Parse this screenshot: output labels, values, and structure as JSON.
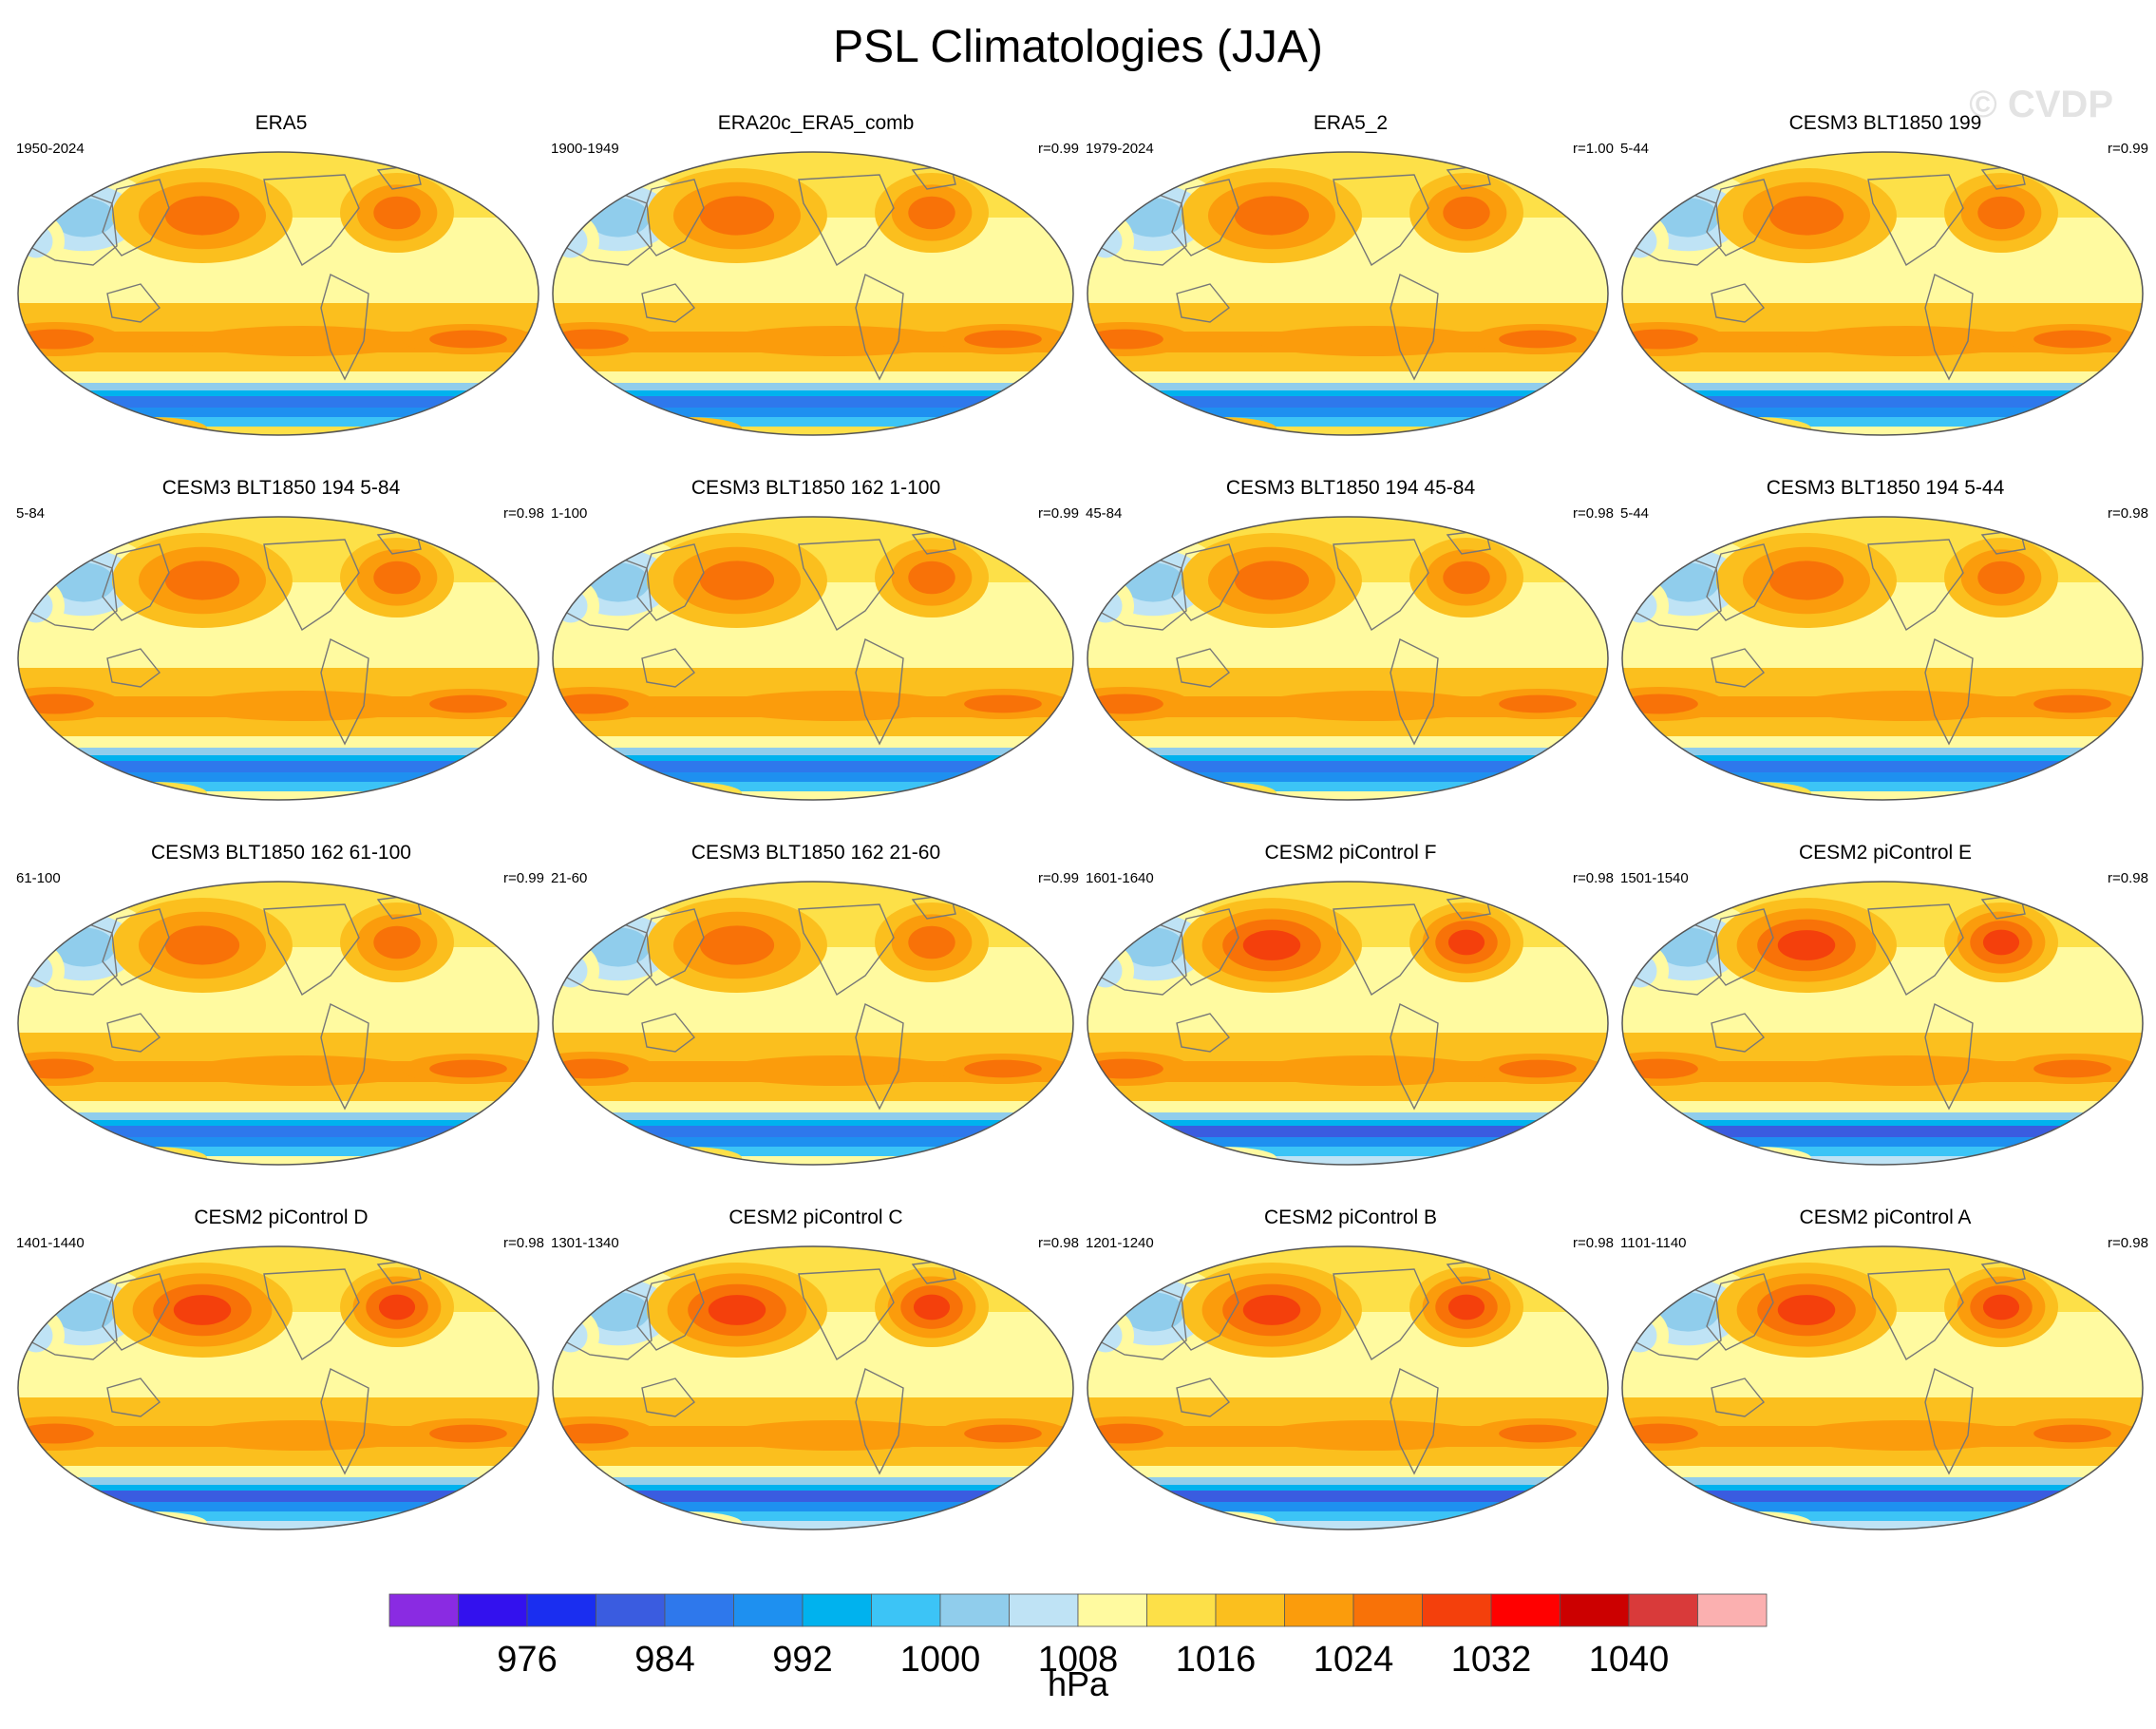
{
  "title": "PSL Climatologies (JJA)",
  "watermark": "© CVDP",
  "panels": [
    {
      "title": "ERA5",
      "years": "1950-2024",
      "corr": "",
      "style": "era"
    },
    {
      "title": "ERA20c_ERA5_comb",
      "years": "1900-1949",
      "corr": "r=0.99",
      "style": "era"
    },
    {
      "title": "ERA5_2",
      "years": "1979-2024",
      "corr": "r=1.00",
      "style": "era"
    },
    {
      "title": "CESM3 BLT1850 199",
      "years": "5-44",
      "corr": "r=0.99",
      "style": "cesm3"
    },
    {
      "title": "CESM3 BLT1850 194 5-84",
      "years": "5-84",
      "corr": "r=0.98",
      "style": "cesm3"
    },
    {
      "title": "CESM3 BLT1850 162 1-100",
      "years": "1-100",
      "corr": "r=0.99",
      "style": "cesm3"
    },
    {
      "title": "CESM3 BLT1850 194 45-84",
      "years": "45-84",
      "corr": "r=0.98",
      "style": "cesm3"
    },
    {
      "title": "CESM3 BLT1850 194 5-44",
      "years": "5-44",
      "corr": "r=0.98",
      "style": "cesm3"
    },
    {
      "title": "CESM3 BLT1850 162 61-100",
      "years": "61-100",
      "corr": "r=0.99",
      "style": "cesm3"
    },
    {
      "title": "CESM3 BLT1850 162 21-60",
      "years": "21-60",
      "corr": "r=0.99",
      "style": "cesm3"
    },
    {
      "title": "CESM2 piControl F",
      "years": "1601-1640",
      "corr": "r=0.98",
      "style": "cesm2"
    },
    {
      "title": "CESM2 piControl E",
      "years": "1501-1540",
      "corr": "r=0.98",
      "style": "cesm2"
    },
    {
      "title": "CESM2 piControl D",
      "years": "1401-1440",
      "corr": "r=0.98",
      "style": "cesm2"
    },
    {
      "title": "CESM2 piControl C",
      "years": "1301-1340",
      "corr": "r=0.98",
      "style": "cesm2"
    },
    {
      "title": "CESM2 piControl B",
      "years": "1201-1240",
      "corr": "r=0.98",
      "style": "cesm2"
    },
    {
      "title": "CESM2 piControl A",
      "years": "1101-1140",
      "corr": "r=0.98",
      "style": "cesm2"
    }
  ],
  "chart_data": {
    "type": "heatmap",
    "title": "PSL Climatologies (JJA)",
    "colorbar": {
      "unit": "hPa",
      "levels": [
        972,
        976,
        980,
        984,
        988,
        992,
        996,
        1000,
        1004,
        1008,
        1012,
        1016,
        1020,
        1024,
        1028,
        1032,
        1036,
        1040
      ],
      "tick_labels": [
        "976",
        "984",
        "992",
        "1000",
        "1008",
        "1016",
        "1024",
        "1032",
        "1040"
      ],
      "tick_values": [
        976,
        984,
        992,
        1000,
        1008,
        1016,
        1024,
        1032,
        1040
      ],
      "colors": [
        "#8a2be2",
        "#3311ee",
        "#1a2ef0",
        "#3a5ce0",
        "#2e78ec",
        "#1e90f0",
        "#00b2ee",
        "#3cc4f6",
        "#90cdec",
        "#bfe3f5",
        "#fffaa0",
        "#fde048",
        "#fbbf1e",
        "#fb9c0c",
        "#f87208",
        "#f4400c",
        "#ff0000",
        "#cc0000",
        "#d93a3a",
        "#fbb0b0"
      ]
    },
    "field": "Sea level pressure (PSL), JJA mean",
    "projection": "Robinson, centered on the Pacific",
    "approx_values_hpa": {
      "north_pacific_high": 1024,
      "north_atlantic_high": 1024,
      "southern_subtropical_highs": 1020,
      "tropics": 1010,
      "asian_low": 1002,
      "southern_ocean_trough": 984,
      "antarctica": 1008
    }
  }
}
